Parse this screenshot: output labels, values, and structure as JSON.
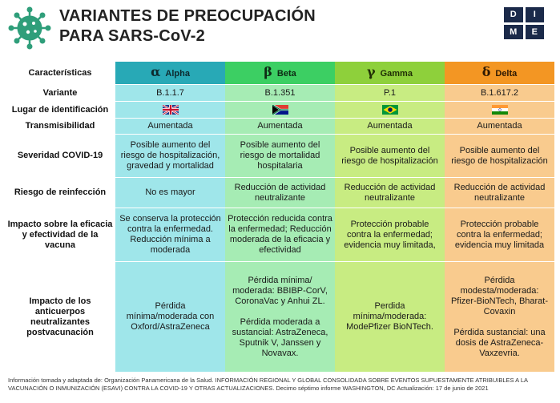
{
  "header": {
    "title_line1": "VARIANTES DE PREOCUPACIÓN",
    "title_line2": "PARA SARS-CoV-2",
    "logo_letters": [
      "D",
      "I",
      "M",
      "E"
    ]
  },
  "columns": [
    {
      "key": "alpha",
      "greek": "α",
      "name": "Alpha"
    },
    {
      "key": "beta",
      "greek": "β",
      "name": "Beta"
    },
    {
      "key": "gamma",
      "greek": "γ",
      "name": "Gamma"
    },
    {
      "key": "delta",
      "greek": "δ",
      "name": "Delta"
    }
  ],
  "characteristics_label": "Características",
  "rows": [
    {
      "label": "Variante",
      "cells": [
        "B.1.1.7",
        "B.1.351",
        "P.1",
        "B.1.617.2"
      ]
    },
    {
      "label": "Lugar de identificación",
      "flags": [
        "uk-flag-icon",
        "south-africa-flag-icon",
        "brazil-flag-icon",
        "india-flag-icon"
      ]
    },
    {
      "label": "Transmisibilidad",
      "cells": [
        "Aumentada",
        "Aumentada",
        "Aumentada",
        "Aumentada"
      ]
    },
    {
      "label": "Severidad COVID-19",
      "cells": [
        "Posible aumento del riesgo de hospitalización, gravedad y mortalidad",
        "Posible aumento del riesgo de mortalidad hospitalaria",
        "Posible aumento del riesgo de hospitalización",
        "Posible aumento del riesgo de hospitalización"
      ]
    },
    {
      "label": "Riesgo de reinfección",
      "cells": [
        "No es mayor",
        "Reducción de actividad neutralizante",
        "Reducción de actividad neutralizante",
        "Reducción de actividad neutralizante"
      ]
    },
    {
      "label": "Impacto sobre la eficacia y efectividad de la vacuna",
      "cells": [
        "Se conserva la protección contra la enfermedad. Reducción mínima a moderada",
        "Protección reducida contra la enfermedad; Reducción moderada de la eficacia y efectividad",
        "Protección probable contra la enfermedad; evidencia muy limitada,",
        "Protección probable contra la enfermedad; evidencia muy limitada"
      ]
    },
    {
      "label": "Impacto de los anticuerpos neutralizantes postvacunación",
      "cells": [
        "Pérdida\nmínima/moderada con Oxford/AstraZeneca",
        "Pérdida mínima/ moderada: BBIBP-CorV, CoronaVac y Anhui ZL.\n\nPérdida moderada a sustancial: AstraZeneca, Sputnik V, Janssen y Novavax.",
        "Perdida\nmínima/moderada:\nModePfizer BioNTech.",
        "Pérdida modesta/moderada: Pfizer-BioNTech, Bharat-Covaxin\n\nPérdida sustancial: una dosis de AstraZeneca-Vaxzevria."
      ]
    }
  ],
  "footer": "Información tomada y adaptada de: Organización Panamericana de la Salud. INFORMACIÓN REGIONAL Y GLOBAL CONSOLIDADA SOBRE EVENTOS SUPUESTAMENTE ATRIBUIBLES A LA VACUNACIÓN O INMUNIZACIÓN (ESAVI) CONTRA LA COVID-19 Y OTRAS ACTUALIZACIONES. Decimo séptimo informe WASHINGTON, DC Actualización: 17 de junio de 2021",
  "colors": {
    "alpha": "#28a9b6",
    "beta": "#3ccf63",
    "gamma": "#8ed03b",
    "delta": "#f39623",
    "virus": "#2f9e7a"
  }
}
